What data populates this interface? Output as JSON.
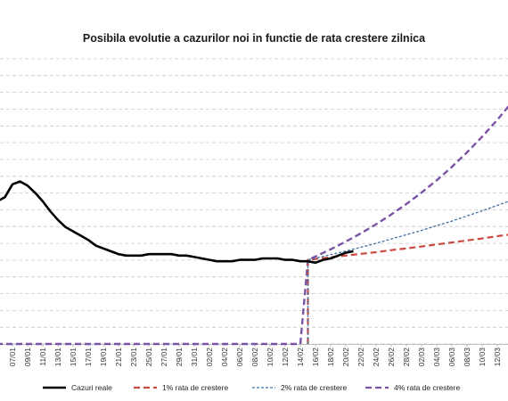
{
  "chart_data": {
    "type": "line",
    "title": "Posibila evolutie a cazurilor noi in functie de rata crestere zilnica",
    "xlabel": "",
    "ylabel": "",
    "x_tick_labels": [
      "07/01",
      "09/01",
      "11/01",
      "13/01",
      "15/01",
      "17/01",
      "19/01",
      "21/01",
      "23/01",
      "25/01",
      "27/01",
      "29/01",
      "31/01",
      "02/02",
      "04/02",
      "06/02",
      "08/02",
      "10/02",
      "12/02",
      "14/02",
      "16/02",
      "18/02",
      "20/02",
      "22/02",
      "24/02",
      "26/02",
      "28/02",
      "02/03",
      "04/03",
      "06/03",
      "08/03",
      "10/03",
      "12/03"
    ],
    "y_range_relative": [
      0,
      100
    ],
    "grid": true,
    "legend_position": "bottom",
    "series": [
      {
        "name": "Cazuri reale",
        "color": "#000000",
        "style": "solid",
        "points": [
          [
            "05/01",
            50.0
          ],
          [
            "06/01",
            51.5
          ],
          [
            "07/01",
            56.0
          ],
          [
            "08/01",
            57.0
          ],
          [
            "09/01",
            55.5
          ],
          [
            "10/01",
            53.0
          ],
          [
            "11/01",
            50.0
          ],
          [
            "12/01",
            46.5
          ],
          [
            "13/01",
            43.5
          ],
          [
            "14/01",
            41.0
          ],
          [
            "15/01",
            39.5
          ],
          [
            "16/01",
            38.0
          ],
          [
            "17/01",
            36.5
          ],
          [
            "18/01",
            34.5
          ],
          [
            "19/01",
            33.5
          ],
          [
            "20/01",
            32.5
          ],
          [
            "21/01",
            31.5
          ],
          [
            "22/01",
            31.0
          ],
          [
            "23/01",
            31.0
          ],
          [
            "24/01",
            31.0
          ],
          [
            "25/01",
            31.5
          ],
          [
            "26/01",
            31.5
          ],
          [
            "27/01",
            31.5
          ],
          [
            "28/01",
            31.5
          ],
          [
            "29/01",
            31.0
          ],
          [
            "30/01",
            31.0
          ],
          [
            "31/01",
            30.5
          ],
          [
            "01/02",
            30.0
          ],
          [
            "02/02",
            29.5
          ],
          [
            "03/02",
            29.0
          ],
          [
            "04/02",
            29.0
          ],
          [
            "05/02",
            29.0
          ],
          [
            "06/02",
            29.5
          ],
          [
            "07/02",
            29.5
          ],
          [
            "08/02",
            29.5
          ],
          [
            "09/02",
            30.0
          ],
          [
            "10/02",
            30.0
          ],
          [
            "11/02",
            30.0
          ],
          [
            "12/02",
            29.5
          ],
          [
            "13/02",
            29.5
          ],
          [
            "14/02",
            29.0
          ],
          [
            "15/02",
            29.0
          ],
          [
            "16/02",
            28.5
          ],
          [
            "17/02",
            29.5
          ],
          [
            "18/02",
            30.0
          ],
          [
            "19/02",
            31.0
          ],
          [
            "20/02",
            32.0
          ],
          [
            "21/02",
            32.5
          ]
        ]
      },
      {
        "name": "1% rata de crestere",
        "color": "#cc4a44",
        "style": "dashed",
        "points": [
          [
            "15/02",
            0
          ],
          [
            "15/02",
            29.5
          ],
          [
            "16/02",
            29.8
          ],
          [
            "18/02",
            30.4
          ],
          [
            "20/02",
            31.0
          ],
          [
            "22/02",
            31.6
          ],
          [
            "24/02",
            32.2
          ],
          [
            "26/02",
            32.9
          ],
          [
            "28/02",
            33.5
          ],
          [
            "02/03",
            34.2
          ],
          [
            "04/03",
            34.9
          ],
          [
            "06/03",
            35.6
          ],
          [
            "08/03",
            36.3
          ],
          [
            "10/03",
            37.0
          ],
          [
            "12/03",
            37.8
          ],
          [
            "14/03",
            38.5
          ]
        ]
      },
      {
        "name": "2% rata de crestere",
        "color": "#3f6fa6",
        "style": "dotted",
        "points": [
          [
            "15/02",
            0
          ],
          [
            "15/02",
            29.5
          ],
          [
            "16/02",
            30.1
          ],
          [
            "18/02",
            31.3
          ],
          [
            "20/02",
            32.6
          ],
          [
            "22/02",
            33.9
          ],
          [
            "24/02",
            35.3
          ],
          [
            "26/02",
            36.8
          ],
          [
            "28/02",
            38.3
          ],
          [
            "02/03",
            39.8
          ],
          [
            "04/03",
            41.5
          ],
          [
            "06/03",
            43.1
          ],
          [
            "08/03",
            44.9
          ],
          [
            "10/03",
            46.7
          ],
          [
            "12/03",
            48.6
          ],
          [
            "14/03",
            50.5
          ]
        ]
      },
      {
        "name": "4% rata de crestere",
        "color": "#7a52a6",
        "style": "dashed",
        "points": [
          [
            "01/01",
            0
          ],
          [
            "14/02",
            0
          ],
          [
            "15/02",
            29.5
          ],
          [
            "16/02",
            30.7
          ],
          [
            "18/02",
            33.2
          ],
          [
            "20/02",
            35.9
          ],
          [
            "22/02",
            38.8
          ],
          [
            "24/02",
            42.0
          ],
          [
            "26/02",
            45.4
          ],
          [
            "28/02",
            49.1
          ],
          [
            "02/03",
            53.1
          ],
          [
            "04/03",
            57.4
          ],
          [
            "06/03",
            62.1
          ],
          [
            "08/03",
            67.2
          ],
          [
            "10/03",
            72.7
          ],
          [
            "12/03",
            78.6
          ],
          [
            "14/03",
            85.0
          ]
        ]
      }
    ]
  }
}
